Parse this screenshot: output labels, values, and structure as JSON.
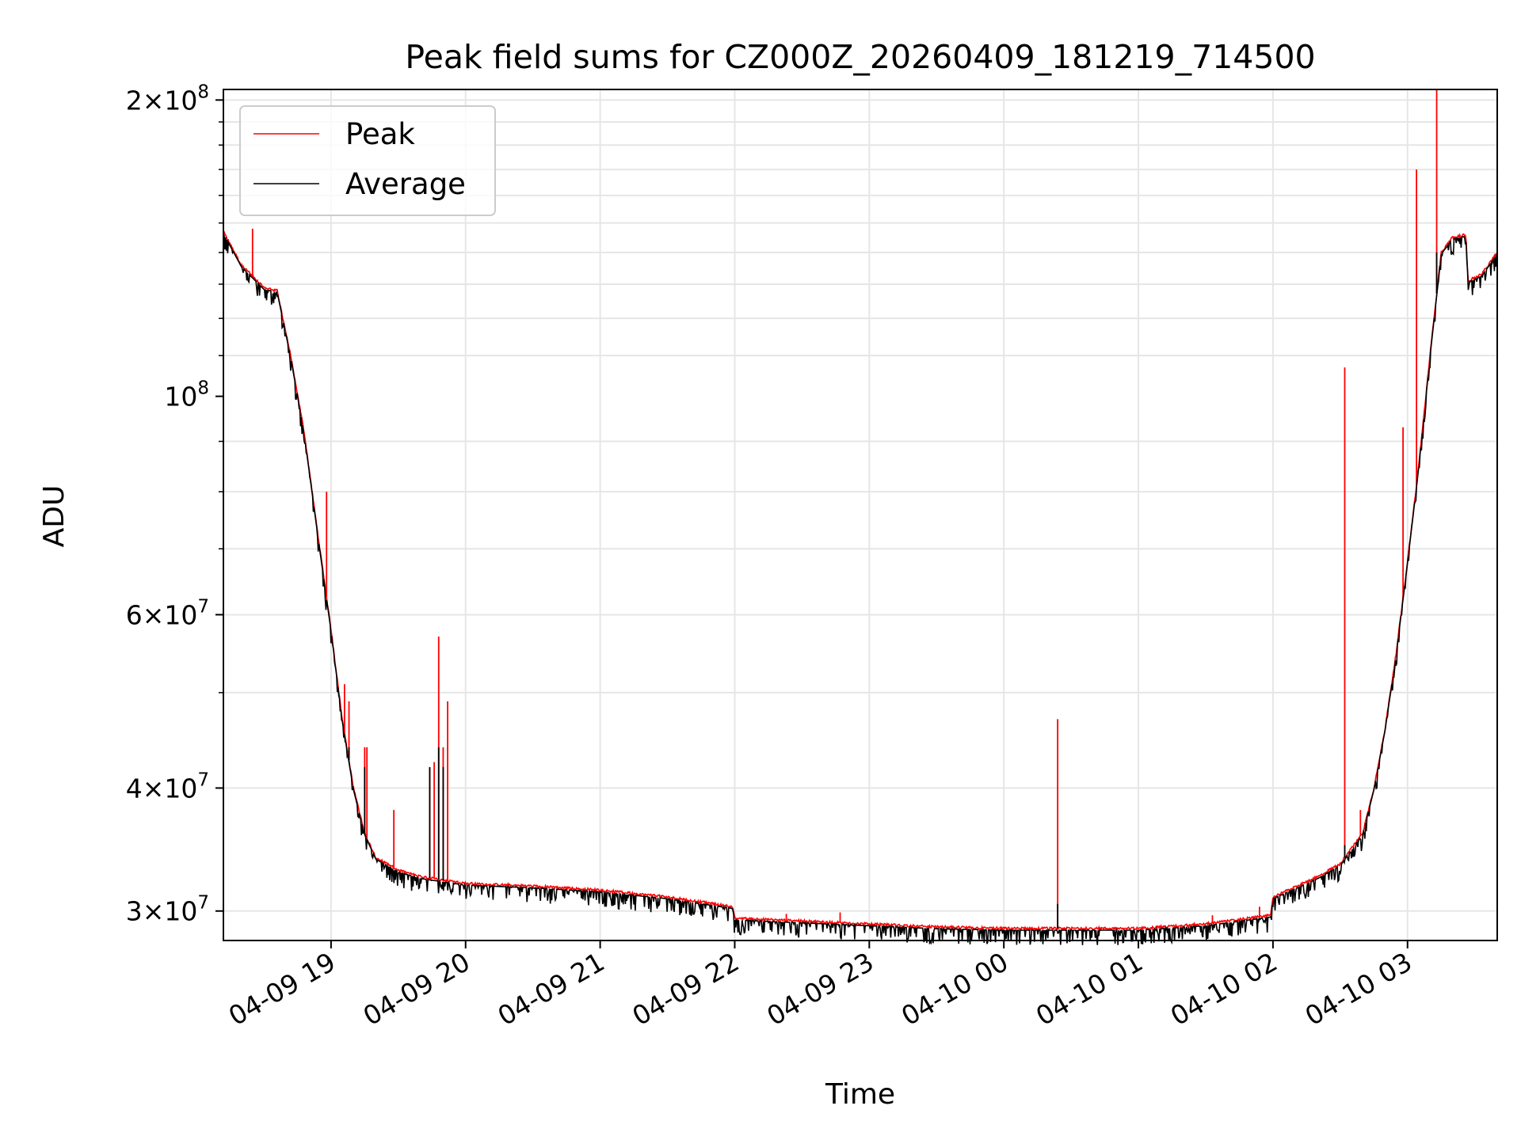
{
  "chart_data": {
    "type": "line",
    "title": "Peak field sums for CZ000Z_20260409_181219_714500",
    "xlabel": "Time",
    "ylabel": "ADU",
    "yscale": "log",
    "xlim": [
      "04-09 18:12",
      "04-10 03:40"
    ],
    "ylim": [
      28000000,
      205000000
    ],
    "grid": true,
    "legend_position": "upper-left",
    "x_ticks": [
      "04-09 19",
      "04-09 20",
      "04-09 21",
      "04-09 22",
      "04-09 23",
      "04-10 00",
      "04-10 01",
      "04-10 02",
      "04-10 03"
    ],
    "y_ticks": [
      {
        "base": "3",
        "exp": "7",
        "value": 30000000
      },
      {
        "base": "4",
        "exp": "7",
        "value": 40000000
      },
      {
        "base": "6",
        "exp": "7",
        "value": 60000000
      },
      {
        "base": "",
        "exp": "8",
        "value": 100000000
      },
      {
        "base": "2",
        "exp": "8",
        "value": 200000000
      }
    ],
    "baseline_points": [
      [
        "04-09 18:12",
        147000000
      ],
      [
        "04-09 18:20",
        136000000
      ],
      [
        "04-09 18:30",
        129000000
      ],
      [
        "04-09 18:36",
        128000000
      ],
      [
        "04-09 18:42",
        110000000
      ],
      [
        "04-09 18:48",
        92000000
      ],
      [
        "04-09 18:55",
        70000000
      ],
      [
        "04-09 19:00",
        58000000
      ],
      [
        "04-09 19:05",
        47000000
      ],
      [
        "04-09 19:10",
        40000000
      ],
      [
        "04-09 19:15",
        36000000
      ],
      [
        "04-09 19:20",
        34000000
      ],
      [
        "04-09 19:30",
        33000000
      ],
      [
        "04-09 19:40",
        32500000
      ],
      [
        "04-09 20:00",
        32000000
      ],
      [
        "04-09 20:30",
        31800000
      ],
      [
        "04-09 21:00",
        31500000
      ],
      [
        "04-09 21:30",
        31000000
      ],
      [
        "04-09 21:59",
        30300000
      ],
      [
        "04-09 22:00",
        29500000
      ],
      [
        "04-09 22:30",
        29300000
      ],
      [
        "04-09 23:00",
        29100000
      ],
      [
        "04-09 23:30",
        28900000
      ],
      [
        "04-10 00:00",
        28800000
      ],
      [
        "04-10 00:30",
        28800000
      ],
      [
        "04-10 01:00",
        28800000
      ],
      [
        "04-10 01:30",
        29100000
      ],
      [
        "04-10 01:59",
        29700000
      ],
      [
        "04-10 02:00",
        31000000
      ],
      [
        "04-10 02:20",
        32500000
      ],
      [
        "04-10 02:30",
        33500000
      ],
      [
        "04-10 02:40",
        36000000
      ],
      [
        "04-10 02:45",
        40000000
      ],
      [
        "04-10 02:50",
        46000000
      ],
      [
        "04-10 02:55",
        55000000
      ],
      [
        "04-10 03:00",
        68000000
      ],
      [
        "04-10 03:05",
        85000000
      ],
      [
        "04-10 03:10",
        110000000
      ],
      [
        "04-10 03:15",
        140000000
      ],
      [
        "04-10 03:20",
        145000000
      ],
      [
        "04-10 03:26",
        146000000
      ],
      [
        "04-10 03:27",
        131000000
      ],
      [
        "04-10 03:33",
        133000000
      ],
      [
        "04-10 03:40",
        140000000
      ]
    ],
    "series": [
      {
        "name": "Peak",
        "color": "#ff0000",
        "spikes": [
          [
            "04-09 18:25",
            148000000
          ],
          [
            "04-09 18:58",
            80000000
          ],
          [
            "04-09 19:06",
            51000000
          ],
          [
            "04-09 19:08",
            49000000
          ],
          [
            "04-09 19:15",
            44000000
          ],
          [
            "04-09 19:16",
            44000000
          ],
          [
            "04-09 19:28",
            38000000
          ],
          [
            "04-09 19:44",
            42000000
          ],
          [
            "04-09 19:46",
            42500000
          ],
          [
            "04-09 19:48",
            57000000
          ],
          [
            "04-09 19:50",
            44000000
          ],
          [
            "04-09 19:52",
            49000000
          ],
          [
            "04-09 22:23",
            29800000
          ],
          [
            "04-09 22:47",
            29900000
          ],
          [
            "04-10 00:24",
            47000000
          ],
          [
            "04-10 01:33",
            29700000
          ],
          [
            "04-10 01:54",
            30300000
          ],
          [
            "04-10 02:32",
            107000000
          ],
          [
            "04-10 02:39",
            38000000
          ],
          [
            "04-10 02:58",
            93000000
          ],
          [
            "04-10 03:04",
            170000000
          ],
          [
            "04-10 03:09",
            105000000
          ],
          [
            "04-10 03:13",
            205000000
          ]
        ]
      },
      {
        "name": "Average",
        "color": "#000000",
        "spikes": [
          [
            "04-09 19:08",
            44000000
          ],
          [
            "04-09 19:15",
            42000000
          ],
          [
            "04-09 19:44",
            42000000
          ],
          [
            "04-09 19:48",
            44000000
          ],
          [
            "04-09 19:50",
            42000000
          ],
          [
            "04-10 00:24",
            30500000
          ],
          [
            "04-10 02:32",
            35000000
          ],
          [
            "04-10 03:13",
            140000000
          ]
        ]
      }
    ]
  }
}
